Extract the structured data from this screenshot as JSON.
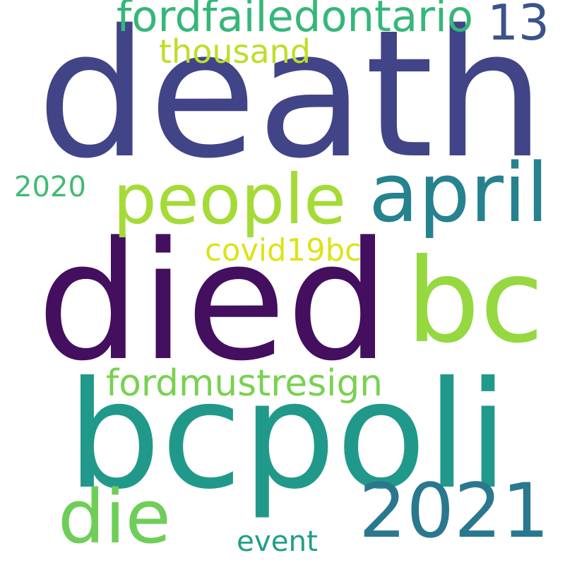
{
  "words": [
    {
      "text": "death",
      "color": "#414487"
    },
    {
      "text": "died",
      "color": "#440f5f"
    },
    {
      "text": "bcpoli",
      "color": "#21998a"
    },
    {
      "text": "bc",
      "color": "#95d840"
    },
    {
      "text": "2021",
      "color": "#2a788e"
    },
    {
      "text": "people",
      "color": "#a5db36"
    },
    {
      "text": "april",
      "color": "#26828e"
    },
    {
      "text": "die",
      "color": "#6ece58"
    },
    {
      "text": "13",
      "color": "#3b528b"
    },
    {
      "text": "fordfailedontario",
      "color": "#35b779"
    },
    {
      "text": "thousand",
      "color": "#bddf26"
    },
    {
      "text": "fordmustresign",
      "color": "#7ad151"
    },
    {
      "text": "covid19bc",
      "color": "#dde318"
    },
    {
      "text": "2020",
      "color": "#3fbc73"
    },
    {
      "text": "event",
      "color": "#1f9e89"
    }
  ]
}
